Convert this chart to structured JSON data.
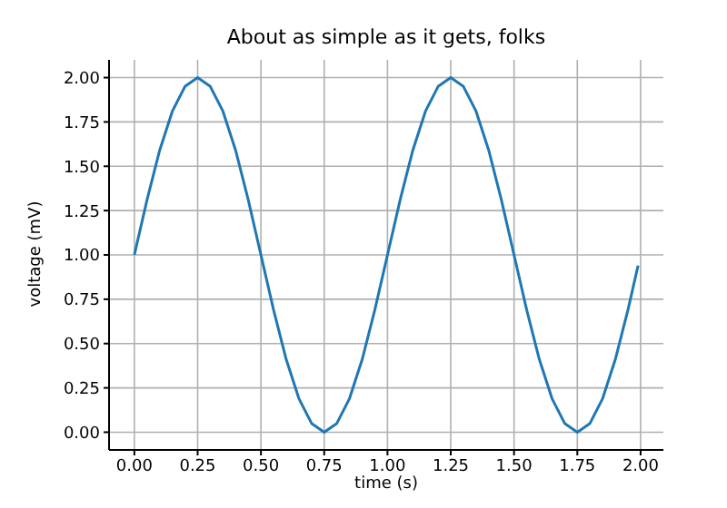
{
  "chart_data": {
    "type": "line",
    "title": "About as simple as it gets, folks",
    "xlabel": "time (s)",
    "ylabel": "voltage (mV)",
    "x": [
      0,
      0.05,
      0.1,
      0.15,
      0.2,
      0.25,
      0.3,
      0.35,
      0.4,
      0.45,
      0.5,
      0.55,
      0.6,
      0.65,
      0.7,
      0.75,
      0.8,
      0.85,
      0.9,
      0.95,
      1,
      1.05,
      1.1,
      1.15,
      1.2,
      1.25,
      1.3,
      1.35,
      1.4,
      1.45,
      1.5,
      1.55,
      1.6,
      1.65,
      1.7,
      1.75,
      1.8,
      1.85,
      1.9,
      1.95,
      1.99
    ],
    "series": [
      {
        "color": "#1f77b4",
        "values": [
          1,
          1.31,
          1.59,
          1.81,
          1.95,
          2,
          1.95,
          1.81,
          1.59,
          1.31,
          1,
          0.69,
          0.41,
          0.19,
          0.05,
          0,
          0.05,
          0.19,
          0.41,
          0.69,
          1,
          1.31,
          1.59,
          1.81,
          1.95,
          2,
          1.95,
          1.81,
          1.59,
          1.31,
          1,
          0.69,
          0.41,
          0.19,
          0.05,
          0,
          0.05,
          0.19,
          0.41,
          0.69,
          0.94
        ]
      }
    ],
    "xlim": [
      -0.1,
      2.09
    ],
    "ylim": [
      -0.1,
      2.1
    ],
    "xticks": [
      {
        "value": 0,
        "label": "0.00"
      },
      {
        "value": 0.25,
        "label": "0.25"
      },
      {
        "value": 0.5,
        "label": "0.50"
      },
      {
        "value": 0.75,
        "label": "0.75"
      },
      {
        "value": 1,
        "label": "1.00"
      },
      {
        "value": 1.25,
        "label": "1.25"
      },
      {
        "value": 1.5,
        "label": "1.50"
      },
      {
        "value": 1.75,
        "label": "1.75"
      },
      {
        "value": 2,
        "label": "2.00"
      }
    ],
    "yticks": [
      {
        "value": 0,
        "label": "0.00"
      },
      {
        "value": 0.25,
        "label": "0.25"
      },
      {
        "value": 0.5,
        "label": "0.50"
      },
      {
        "value": 0.75,
        "label": "0.75"
      },
      {
        "value": 1,
        "label": "1.00"
      },
      {
        "value": 1.25,
        "label": "1.25"
      },
      {
        "value": 1.5,
        "label": "1.50"
      },
      {
        "value": 1.75,
        "label": "1.75"
      },
      {
        "value": 2,
        "label": "2.00"
      }
    ],
    "grid": true,
    "marker": "none",
    "line_style": "solid",
    "legend": false
  }
}
